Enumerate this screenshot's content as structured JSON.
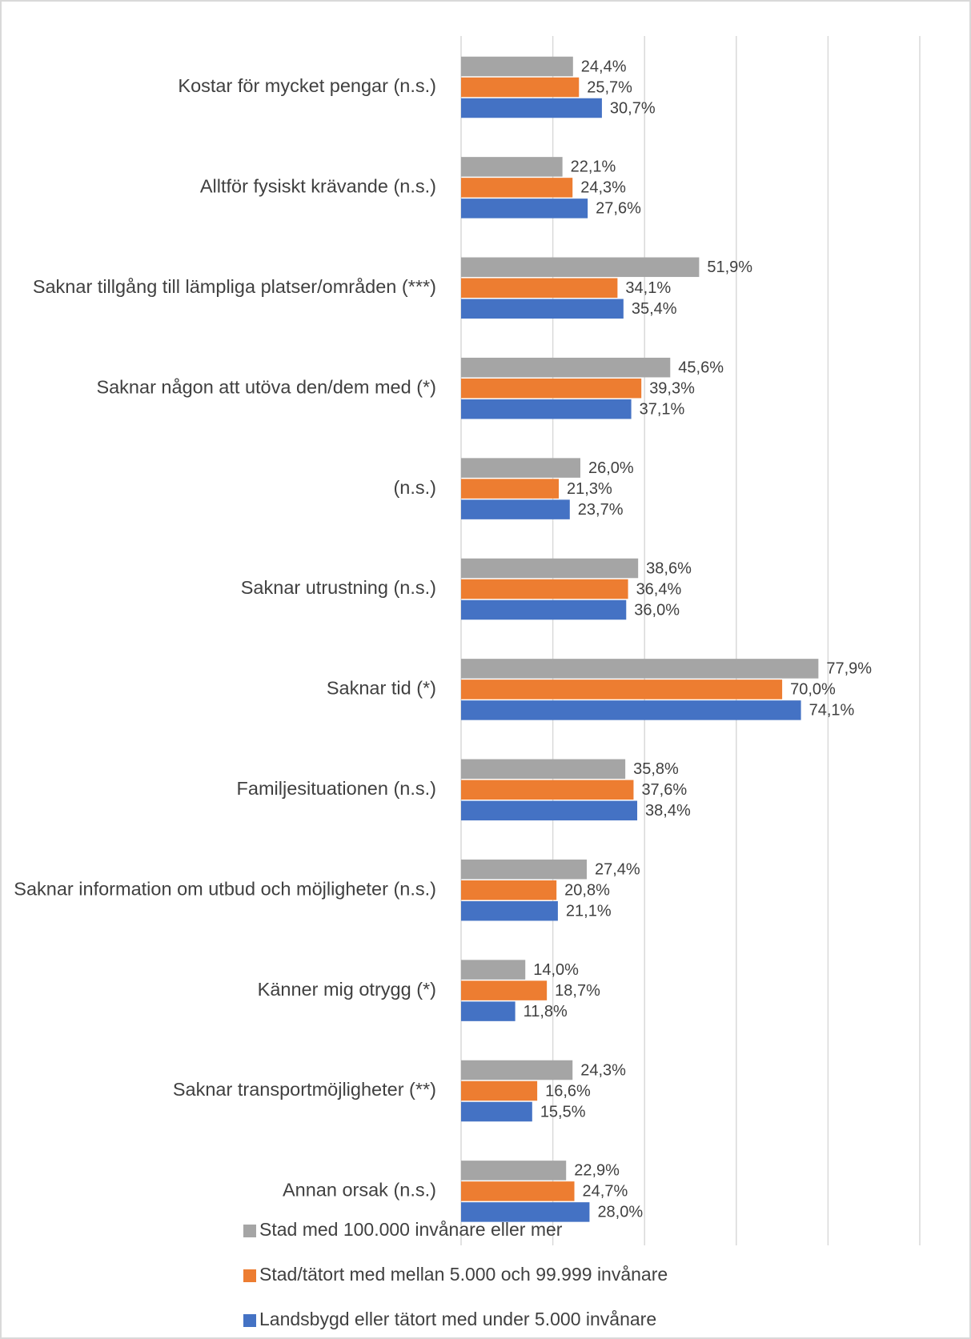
{
  "chart_data": {
    "type": "bar",
    "orientation": "horizontal",
    "categories": [
      "Kostar för mycket pengar (n.s.)",
      "Alltför fysiskt krävande (n.s.)",
      "Saknar tillgång till lämpliga platser/områden (***)",
      "Saknar någon att utöva den/dem med (*)",
      "(n.s.)",
      "Saknar utrustning (n.s.)",
      "Saknar tid (*)",
      "Familjesituationen (n.s.)",
      "Saknar information om utbud och möjligheter (n.s.)",
      "Känner mig otrygg (*)",
      "Saknar transportmöjligheter (**)",
      "Annan orsak (n.s.)"
    ],
    "series": [
      {
        "name": "Stad med 100.000 invånare eller mer",
        "color": "#a5a5a5",
        "values": [
          24.4,
          22.1,
          51.9,
          45.6,
          26.0,
          38.6,
          77.9,
          35.8,
          27.4,
          14.0,
          24.3,
          22.9
        ],
        "value_labels": [
          "24,4%",
          "22,1%",
          "51,9%",
          "45,6%",
          "26,0%",
          "38,6%",
          "77,9%",
          "35,8%",
          "27,4%",
          "14,0%",
          "24,3%",
          "22,9%"
        ]
      },
      {
        "name": "Stad/tätort med mellan 5.000 och 99.999 invånare",
        "color": "#ed7d31",
        "values": [
          25.7,
          24.3,
          34.1,
          39.3,
          21.3,
          36.4,
          70.0,
          37.6,
          20.8,
          18.7,
          16.6,
          24.7
        ],
        "value_labels": [
          "25,7%",
          "24,3%",
          "34,1%",
          "39,3%",
          "21,3%",
          "36,4%",
          "70,0%",
          "37,6%",
          "20,8%",
          "18,7%",
          "16,6%",
          "24,7%"
        ]
      },
      {
        "name": "Landsbygd eller tätort med under 5.000 invånare",
        "color": "#4472c4",
        "values": [
          30.7,
          27.6,
          35.4,
          37.1,
          23.7,
          36.0,
          74.1,
          38.4,
          21.1,
          11.8,
          15.5,
          28.0
        ],
        "value_labels": [
          "30,7%",
          "27,6%",
          "35,4%",
          "37,1%",
          "23,7%",
          "36,0%",
          "74,1%",
          "38,4%",
          "21,1%",
          "11,8%",
          "15,5%",
          "28,0%"
        ]
      }
    ],
    "xlim": [
      0,
      100
    ],
    "xticks": [
      0,
      20,
      40,
      60,
      80,
      100
    ],
    "grid": true,
    "legend": "bottom"
  }
}
